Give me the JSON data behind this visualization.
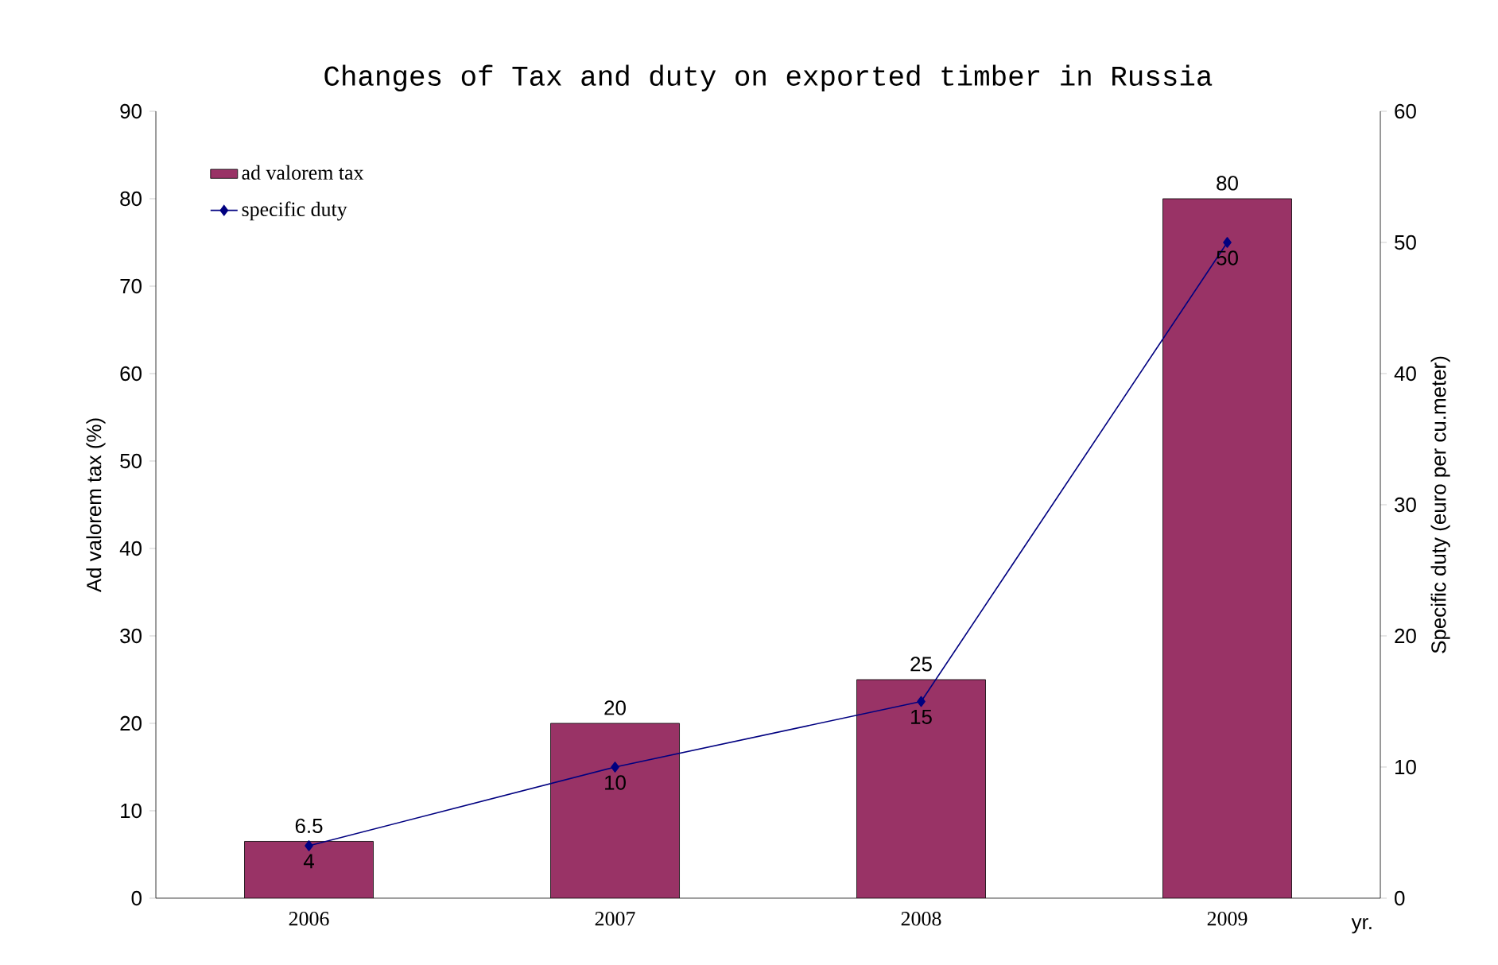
{
  "chart_data": {
    "type": "bar",
    "title": "Changes of Tax and duty on exported timber in Russia",
    "xlabel": "yr.",
    "ylabel": "Ad valorem tax (%)",
    "y2label": "Specific duty (euro per cu.meter)",
    "categories": [
      "2006",
      "2007",
      "2008",
      "2009"
    ],
    "series": [
      {
        "name": "ad valorem tax",
        "color": "#993366",
        "values": [
          6.5,
          20,
          25,
          80
        ]
      },
      {
        "name": "specific duty",
        "type": "line",
        "axis": "y2",
        "color": "#000080",
        "values": [
          4,
          10,
          15,
          50
        ]
      }
    ],
    "ylim": [
      0,
      90
    ],
    "yticks": [
      0,
      10,
      20,
      30,
      40,
      50,
      60,
      70,
      80,
      90
    ],
    "y2lim": [
      0,
      60
    ],
    "y2ticks": [
      0,
      10,
      20,
      30,
      40,
      50,
      60
    ],
    "data_labels": true,
    "legend": "top left",
    "marker": "diamond"
  }
}
